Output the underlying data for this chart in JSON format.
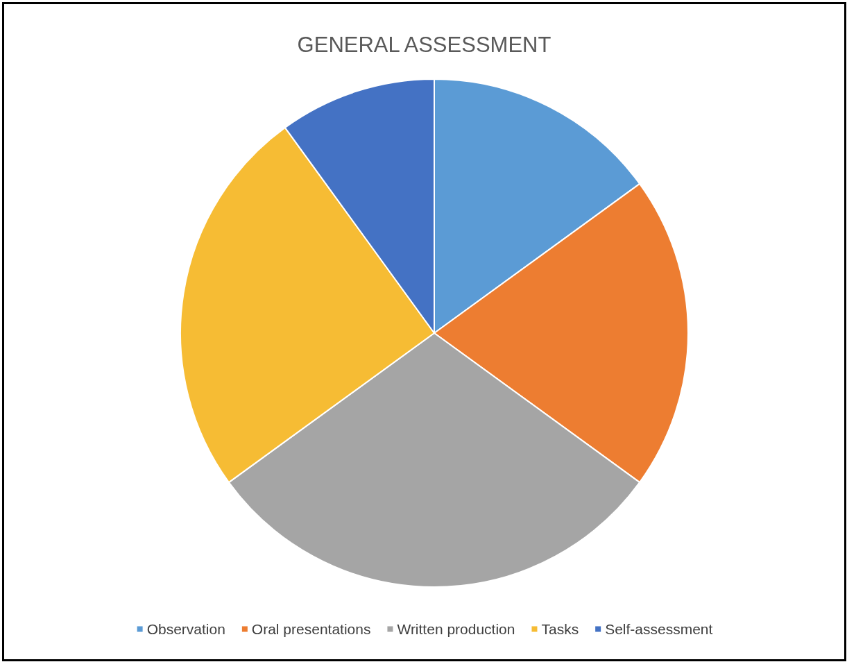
{
  "chart_data": {
    "type": "pie",
    "title": "GENERAL ASSESSMENT",
    "categories": [
      "Observation",
      "Oral presentations",
      "Written production",
      "Tasks",
      "Self-assessment"
    ],
    "values": [
      15,
      20,
      30,
      25,
      10
    ],
    "colors": [
      "#5b9bd5",
      "#ed7d31",
      "#a5a5a5",
      "#f6bc34",
      "#4472c4"
    ],
    "legend": "bottom"
  }
}
